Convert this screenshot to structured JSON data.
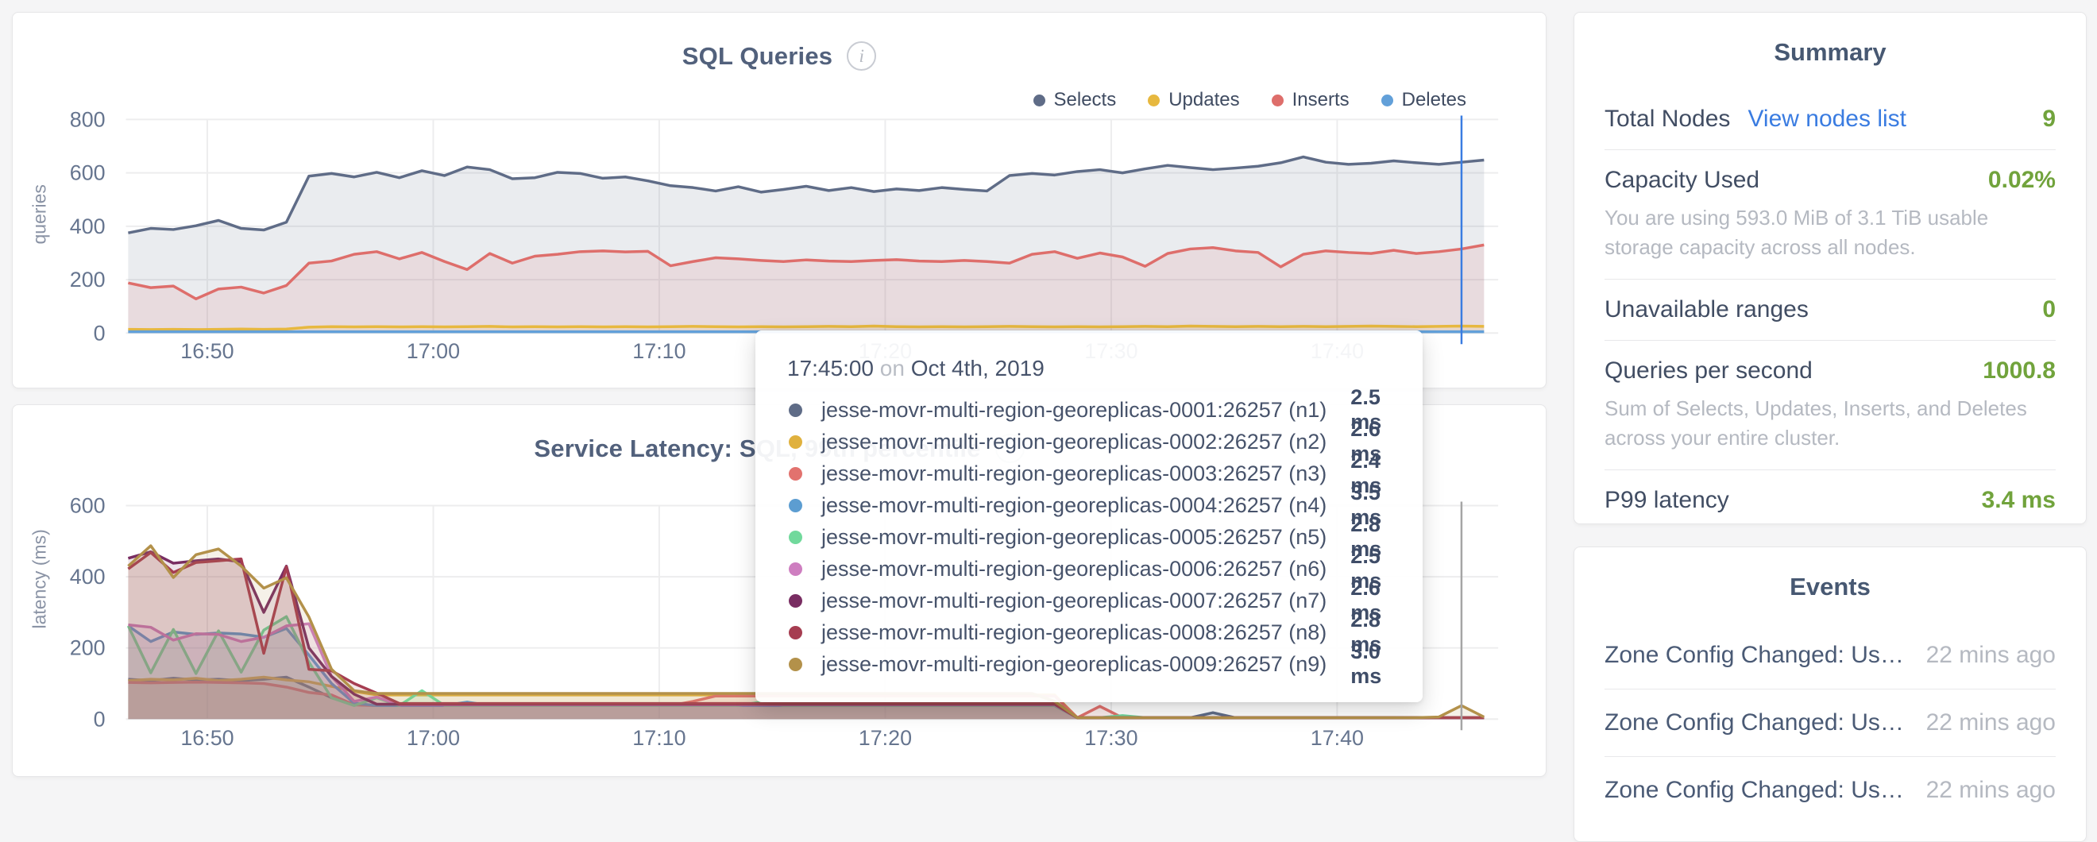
{
  "tooltip": {
    "time": "17:45:00",
    "conj": "on",
    "date": "Oct 4th, 2019",
    "rows": [
      {
        "color": "#5f6c87",
        "name": "jesse-movr-multi-region-georeplicas-0001:26257 (n1)",
        "value": "2.5 ms"
      },
      {
        "color": "#e0b13e",
        "name": "jesse-movr-multi-region-georeplicas-0002:26257 (n2)",
        "value": "2.6 ms"
      },
      {
        "color": "#e2726e",
        "name": "jesse-movr-multi-region-georeplicas-0003:26257 (n3)",
        "value": "2.4 ms"
      },
      {
        "color": "#5c9dd1",
        "name": "jesse-movr-multi-region-georeplicas-0004:26257 (n4)",
        "value": "3.5 ms"
      },
      {
        "color": "#71d99c",
        "name": "jesse-movr-multi-region-georeplicas-0005:26257 (n5)",
        "value": "2.8 ms"
      },
      {
        "color": "#ce7ec0",
        "name": "jesse-movr-multi-region-georeplicas-0006:26257 (n6)",
        "value": "2.5 ms"
      },
      {
        "color": "#792d62",
        "name": "jesse-movr-multi-region-georeplicas-0007:26257 (n7)",
        "value": "2.6 ms"
      },
      {
        "color": "#a63d51",
        "name": "jesse-movr-multi-region-georeplicas-0008:26257 (n8)",
        "value": "2.8 ms"
      },
      {
        "color": "#b3914a",
        "name": "jesse-movr-multi-region-georeplicas-0009:26257 (n9)",
        "value": "3.0 ms"
      }
    ]
  },
  "summary": {
    "title": "Summary",
    "total_nodes": {
      "label": "Total Nodes",
      "link": "View nodes list",
      "value": "9"
    },
    "capacity": {
      "label": "Capacity Used",
      "value": "0.02%",
      "sub": "You are using 593.0 MiB of 3.1 TiB usable storage capacity across all nodes."
    },
    "unavailable": {
      "label": "Unavailable ranges",
      "value": "0"
    },
    "qps": {
      "label": "Queries per second",
      "value": "1000.8",
      "sub": "Sum of Selects, Updates, Inserts, and Deletes across your entire cluster."
    },
    "p99": {
      "label": "P99 latency",
      "value": "3.4 ms"
    }
  },
  "events": {
    "title": "Events",
    "rows": [
      {
        "text": "Zone Config Changed: User…",
        "time": "22 mins ago"
      },
      {
        "text": "Zone Config Changed: User…",
        "time": "22 mins ago"
      },
      {
        "text": "Zone Config Changed: User…",
        "time": "22 mins ago"
      }
    ]
  },
  "chart_data": [
    {
      "type": "area",
      "title": "SQL Queries",
      "ylabel": "queries",
      "ylim": [
        0,
        800
      ],
      "yticks": [
        0,
        200,
        400,
        600,
        800
      ],
      "x_domain": [
        -3.6,
        56.6
      ],
      "x_start": -3.5,
      "x_step": 1,
      "xticks": [
        {
          "t": 0,
          "label": "16:50"
        },
        {
          "t": 10,
          "label": "17:00"
        },
        {
          "t": 20,
          "label": "17:10"
        },
        {
          "t": 30,
          "label": "17:20"
        },
        {
          "t": 40,
          "label": "17:30"
        },
        {
          "t": 50,
          "label": "17:40"
        }
      ],
      "grid": true,
      "legend_position": "top-right",
      "fill_opacity": 0.13,
      "crosshair": {
        "t": 55.5,
        "color": "#3a7ce1"
      },
      "legend": [
        {
          "label": "Selects",
          "color": "#5f6c87"
        },
        {
          "label": "Updates",
          "color": "#e7b83f"
        },
        {
          "label": "Inserts",
          "color": "#de6e6b"
        },
        {
          "label": "Deletes",
          "color": "#62a0d9"
        }
      ],
      "series": [
        {
          "key": "selects",
          "name": "Selects",
          "color": "#5f6c87",
          "values": [
            375,
            392,
            388,
            402,
            422,
            392,
            386,
            415,
            588,
            598,
            585,
            602,
            582,
            608,
            590,
            622,
            612,
            578,
            582,
            602,
            598,
            580,
            585,
            570,
            552,
            545,
            532,
            548,
            528,
            538,
            550,
            534,
            545,
            530,
            540,
            534,
            545,
            538,
            532,
            590,
            598,
            592,
            605,
            612,
            600,
            615,
            628,
            620,
            612,
            618,
            625,
            638,
            660,
            640,
            632,
            636,
            645,
            638,
            632,
            640,
            648
          ]
        },
        {
          "key": "inserts",
          "name": "Inserts",
          "color": "#de6e6b",
          "values": [
            188,
            170,
            176,
            128,
            165,
            172,
            150,
            178,
            262,
            270,
            295,
            305,
            278,
            302,
            268,
            238,
            298,
            262,
            288,
            295,
            305,
            308,
            304,
            306,
            252,
            268,
            282,
            278,
            272,
            268,
            274,
            270,
            268,
            272,
            275,
            270,
            268,
            272,
            268,
            262,
            295,
            305,
            280,
            300,
            285,
            250,
            298,
            315,
            320,
            308,
            302,
            248,
            295,
            308,
            302,
            298,
            310,
            298,
            305,
            315,
            330
          ]
        },
        {
          "key": "updates",
          "name": "Updates",
          "color": "#e7b83f",
          "values": [
            14,
            13,
            14,
            13,
            14,
            15,
            14,
            15,
            22,
            24,
            23,
            24,
            23,
            24,
            23,
            24,
            25,
            23,
            24,
            23,
            24,
            23,
            24,
            23,
            24,
            25,
            24,
            23,
            24,
            23,
            24,
            25,
            24,
            26,
            24,
            23,
            24,
            23,
            24,
            25,
            24,
            23,
            24,
            23,
            24,
            25,
            24,
            26,
            25,
            24,
            25,
            24,
            25,
            24,
            25,
            26,
            25,
            24,
            25,
            26,
            25
          ]
        },
        {
          "key": "deletes",
          "name": "Deletes",
          "color": "#62a0d9",
          "values": [
            5,
            5,
            5,
            5,
            5,
            5,
            5,
            5,
            5,
            5,
            5,
            5,
            5,
            5,
            5,
            5,
            5,
            5,
            5,
            5,
            5,
            5,
            5,
            5,
            5,
            5,
            5,
            5,
            5,
            5,
            5,
            5,
            5,
            5,
            5,
            5,
            5,
            5,
            5,
            5,
            5,
            5,
            5,
            5,
            5,
            5,
            5,
            5,
            5,
            5,
            5,
            5,
            5,
            5,
            5,
            5,
            5,
            5,
            5,
            5,
            5
          ]
        }
      ]
    },
    {
      "type": "area",
      "title": "Service Latency: SQL, 99th percentile",
      "ylabel": "latency (ms)",
      "ylim": [
        0,
        600
      ],
      "yticks": [
        0,
        200,
        400,
        600
      ],
      "x_domain": [
        -3.6,
        56.6
      ],
      "x_start": -3.5,
      "x_step": 1,
      "xticks": [
        {
          "t": 0,
          "label": "16:50"
        },
        {
          "t": 10,
          "label": "17:00"
        },
        {
          "t": 20,
          "label": "17:10"
        },
        {
          "t": 30,
          "label": "17:20"
        },
        {
          "t": 40,
          "label": "17:30"
        },
        {
          "t": 50,
          "label": "17:40"
        }
      ],
      "grid": true,
      "legend_position": "hidden",
      "fill_opacity": 0.13,
      "crosshair": {
        "t": 55.5,
        "color": "#a5a5a5"
      },
      "series": [
        {
          "key": "n1",
          "name": "jesse-movr-multi-region-georeplicas-0001:26257 (n1)",
          "color": "#5f6c87",
          "values": [
            112,
            108,
            115,
            110,
            112,
            108,
            112,
            118,
            90,
            60,
            42,
            38,
            38,
            38,
            38,
            38,
            38,
            38,
            38,
            38,
            38,
            38,
            38,
            38,
            38,
            38,
            38,
            38,
            38,
            38,
            38,
            38,
            38,
            38,
            38,
            38,
            38,
            38,
            38,
            38,
            38,
            38,
            4,
            4,
            4,
            4,
            4,
            4,
            18,
            4,
            4,
            4,
            4,
            4,
            4,
            4,
            4,
            4,
            4,
            4,
            4
          ]
        },
        {
          "key": "n2",
          "name": "jesse-movr-multi-region-georeplicas-0002:26257 (n2)",
          "color": "#e0b13e",
          "values": [
            108,
            112,
            110,
            115,
            108,
            112,
            118,
            110,
            105,
            92,
            78,
            68,
            68,
            68,
            68,
            68,
            68,
            68,
            68,
            68,
            68,
            68,
            68,
            68,
            68,
            68,
            68,
            68,
            68,
            68,
            68,
            68,
            68,
            68,
            68,
            68,
            68,
            68,
            68,
            68,
            68,
            68,
            4,
            4,
            4,
            4,
            4,
            4,
            4,
            4,
            4,
            4,
            4,
            4,
            4,
            4,
            4,
            4,
            4,
            4,
            4
          ]
        },
        {
          "key": "n3",
          "name": "jesse-movr-multi-region-georeplicas-0003:26257 (n3)",
          "color": "#e2726e",
          "values": [
            103,
            102,
            103,
            104,
            103,
            102,
            100,
            90,
            75,
            68,
            40,
            38,
            38,
            38,
            38,
            38,
            38,
            38,
            38,
            38,
            38,
            38,
            38,
            38,
            38,
            50,
            65,
            65,
            65,
            65,
            65,
            65,
            65,
            65,
            65,
            65,
            65,
            65,
            65,
            65,
            65,
            65,
            4,
            36,
            4,
            4,
            4,
            4,
            4,
            4,
            4,
            4,
            4,
            4,
            4,
            4,
            4,
            4,
            4,
            4,
            4
          ]
        },
        {
          "key": "n4",
          "name": "jesse-movr-multi-region-georeplicas-0004:26257 (n4)",
          "color": "#5c9dd1",
          "values": [
            262,
            218,
            245,
            238,
            242,
            239,
            230,
            255,
            180,
            100,
            45,
            38,
            38,
            38,
            38,
            48,
            38,
            38,
            38,
            38,
            38,
            38,
            38,
            38,
            38,
            38,
            38,
            38,
            38,
            38,
            38,
            38,
            38,
            38,
            38,
            38,
            38,
            38,
            38,
            38,
            38,
            38,
            4,
            4,
            4,
            4,
            4,
            4,
            4,
            4,
            4,
            4,
            4,
            4,
            4,
            4,
            4,
            4,
            4,
            4,
            4
          ]
        },
        {
          "key": "n5",
          "name": "jesse-movr-multi-region-georeplicas-0005:26257 (n5)",
          "color": "#71d99c",
          "values": [
            262,
            130,
            252,
            128,
            248,
            132,
            250,
            288,
            160,
            60,
            38,
            60,
            38,
            80,
            38,
            38,
            38,
            38,
            38,
            38,
            38,
            38,
            38,
            38,
            38,
            38,
            38,
            38,
            48,
            38,
            38,
            38,
            38,
            38,
            38,
            38,
            38,
            38,
            38,
            38,
            38,
            38,
            4,
            4,
            10,
            4,
            4,
            4,
            4,
            4,
            4,
            4,
            4,
            4,
            4,
            4,
            4,
            4,
            4,
            4,
            4
          ]
        },
        {
          "key": "n6",
          "name": "jesse-movr-multi-region-georeplicas-0006:26257 (n6)",
          "color": "#ce7ec0",
          "values": [
            265,
            258,
            222,
            240,
            238,
            218,
            230,
            262,
            268,
            120,
            50,
            62,
            40,
            40,
            40,
            40,
            40,
            40,
            40,
            40,
            40,
            40,
            40,
            40,
            40,
            40,
            40,
            40,
            40,
            40,
            40,
            40,
            40,
            40,
            40,
            40,
            40,
            40,
            40,
            40,
            40,
            40,
            4,
            4,
            4,
            4,
            4,
            4,
            4,
            4,
            4,
            4,
            4,
            4,
            4,
            4,
            4,
            4,
            4,
            4,
            4
          ]
        },
        {
          "key": "n7",
          "name": "jesse-movr-multi-region-georeplicas-0007:26257 (n7)",
          "color": "#792d62",
          "values": [
            452,
            470,
            438,
            445,
            450,
            442,
            300,
            430,
            200,
            120,
            70,
            42,
            42,
            42,
            42,
            42,
            42,
            42,
            42,
            42,
            42,
            42,
            42,
            42,
            42,
            42,
            42,
            42,
            42,
            42,
            42,
            42,
            42,
            42,
            42,
            42,
            42,
            42,
            42,
            42,
            42,
            42,
            4,
            4,
            4,
            4,
            4,
            4,
            4,
            4,
            4,
            4,
            4,
            4,
            4,
            4,
            4,
            4,
            4,
            4,
            4
          ]
        },
        {
          "key": "n8",
          "name": "jesse-movr-multi-region-georeplicas-0008:26257 (n8)",
          "color": "#a63d51",
          "values": [
            422,
            468,
            412,
            440,
            445,
            450,
            185,
            428,
            140,
            136,
            100,
            73,
            44,
            44,
            44,
            44,
            44,
            44,
            44,
            44,
            44,
            44,
            44,
            44,
            44,
            44,
            44,
            44,
            44,
            44,
            44,
            44,
            44,
            44,
            44,
            44,
            44,
            44,
            44,
            44,
            44,
            44,
            4,
            4,
            4,
            4,
            4,
            4,
            4,
            4,
            4,
            4,
            4,
            4,
            4,
            4,
            4,
            4,
            4,
            4,
            4
          ]
        },
        {
          "key": "n9",
          "name": "jesse-movr-multi-region-georeplicas-0009:26257 (n9)",
          "color": "#b3914a",
          "values": [
            430,
            487,
            398,
            462,
            478,
            430,
            368,
            397,
            287,
            140,
            80,
            72,
            72,
            72,
            72,
            72,
            72,
            72,
            72,
            72,
            72,
            72,
            72,
            72,
            72,
            72,
            72,
            72,
            72,
            72,
            72,
            72,
            72,
            72,
            72,
            72,
            72,
            72,
            72,
            72,
            72,
            50,
            4,
            4,
            4,
            4,
            4,
            4,
            4,
            4,
            4,
            4,
            4,
            4,
            4,
            4,
            4,
            4,
            6,
            38,
            6
          ]
        }
      ]
    }
  ]
}
